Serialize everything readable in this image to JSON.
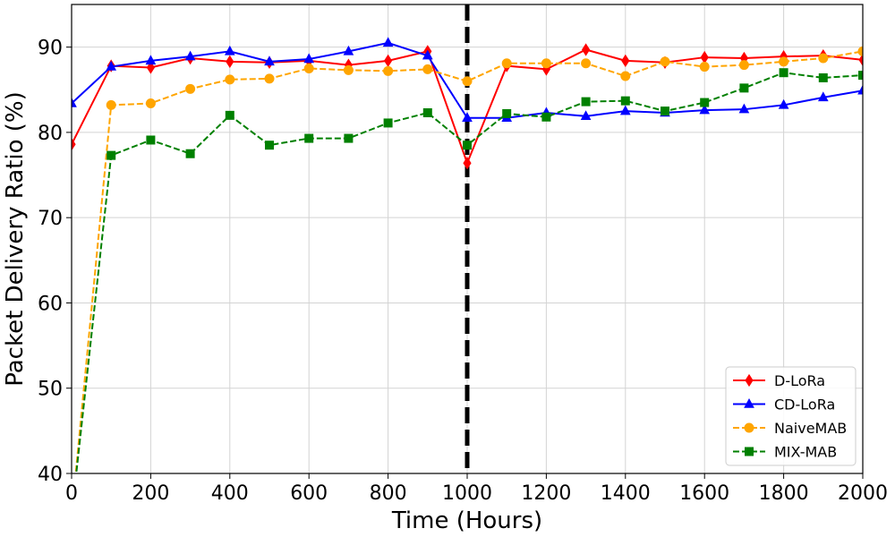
{
  "chart_data": {
    "type": "line",
    "title": "",
    "xlabel": "Time (Hours)",
    "ylabel": "Packet Delivery Ratio (%)",
    "xlim": [
      0,
      2000
    ],
    "ylim": [
      40,
      95
    ],
    "xticks": [
      0,
      200,
      400,
      600,
      800,
      1000,
      1200,
      1400,
      1600,
      1800,
      2000
    ],
    "yticks": [
      40,
      50,
      60,
      70,
      80,
      90
    ],
    "grid": true,
    "legend_position": "bottom-right",
    "annotations": [
      {
        "type": "vertical-dashed-line",
        "x": 1000,
        "color": "#000000"
      }
    ],
    "x": [
      0,
      100,
      200,
      300,
      400,
      500,
      600,
      700,
      800,
      900,
      1000,
      1100,
      1200,
      1300,
      1400,
      1500,
      1600,
      1700,
      1800,
      1900,
      2000
    ],
    "series": [
      {
        "name": "D-LoRa",
        "color": "#ff0000",
        "marker": "diamond",
        "line": "solid",
        "values": [
          78.6,
          87.8,
          87.6,
          88.7,
          88.3,
          88.2,
          88.4,
          87.9,
          88.4,
          89.5,
          76.4,
          87.8,
          87.4,
          89.7,
          88.4,
          88.2,
          88.8,
          88.7,
          88.9,
          89.0,
          88.5
        ]
      },
      {
        "name": "CD-LoRa",
        "color": "#0000ff",
        "marker": "triangle",
        "line": "solid",
        "values": [
          83.4,
          87.7,
          88.4,
          88.9,
          89.5,
          88.3,
          88.6,
          89.5,
          90.5,
          89.0,
          81.7,
          81.7,
          82.3,
          81.9,
          82.5,
          82.3,
          82.6,
          82.7,
          83.2,
          84.1,
          84.9
        ]
      },
      {
        "name": "NaiveMAB",
        "color": "#ffa500",
        "marker": "circle",
        "line": "dashed",
        "values": [
          35.0,
          83.2,
          83.4,
          85.1,
          86.2,
          86.3,
          87.5,
          87.3,
          87.2,
          87.4,
          86.0,
          88.1,
          88.1,
          88.1,
          86.6,
          88.3,
          87.7,
          87.9,
          88.3,
          88.7,
          89.5
        ]
      },
      {
        "name": "MIX-MAB",
        "color": "#008000",
        "marker": "square",
        "line": "dashed",
        "values": [
          35.0,
          77.3,
          79.1,
          77.5,
          82.0,
          78.5,
          79.3,
          79.3,
          81.1,
          82.3,
          78.5,
          82.2,
          81.8,
          83.6,
          83.7,
          82.5,
          83.5,
          85.2,
          87.0,
          86.4,
          86.7
        ]
      }
    ]
  }
}
